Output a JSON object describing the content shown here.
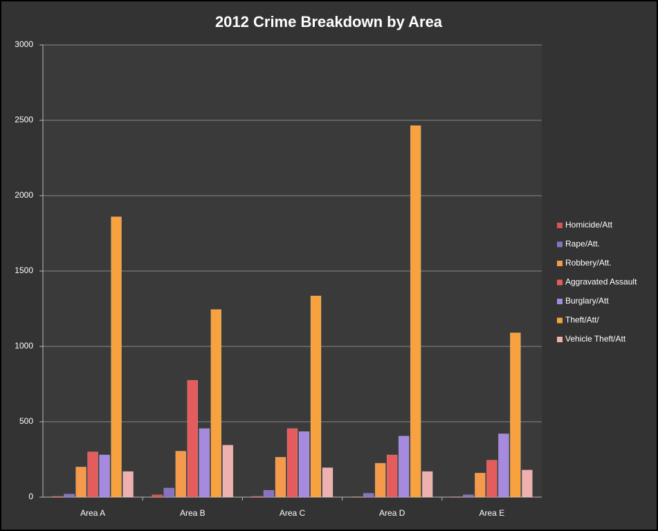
{
  "chart_data": {
    "type": "bar",
    "title": "2012 Crime Breakdown by Area",
    "categories": [
      "Area A",
      "Area B",
      "Area C",
      "Area D",
      "Area E"
    ],
    "series": [
      {
        "name": "Homicide/Att",
        "color": "#d9534f",
        "values": [
          5,
          15,
          5,
          3,
          3
        ]
      },
      {
        "name": "Rape/Att.",
        "color": "#8a70c0",
        "values": [
          20,
          60,
          45,
          25,
          15
        ]
      },
      {
        "name": "Robbery/Att.",
        "color": "#f59a4a",
        "values": [
          200,
          305,
          265,
          225,
          160
        ]
      },
      {
        "name": "Aggravated Assault",
        "color": "#e55c5c",
        "values": [
          300,
          775,
          455,
          280,
          245
        ]
      },
      {
        "name": "Burglary/Att",
        "color": "#a58ae0",
        "values": [
          280,
          455,
          435,
          405,
          420
        ]
      },
      {
        "name": "Theft/Att/",
        "color": "#f7a23e",
        "values": [
          1860,
          1245,
          1335,
          2465,
          1090
        ]
      },
      {
        "name": "Vehicle Theft/Att",
        "color": "#efb0b0",
        "values": [
          170,
          345,
          195,
          170,
          180
        ]
      }
    ],
    "ylim": [
      0,
      3000
    ],
    "yticks": [
      0,
      500,
      1000,
      1500,
      2000,
      2500,
      3000
    ],
    "grid": true,
    "legend": "right"
  }
}
